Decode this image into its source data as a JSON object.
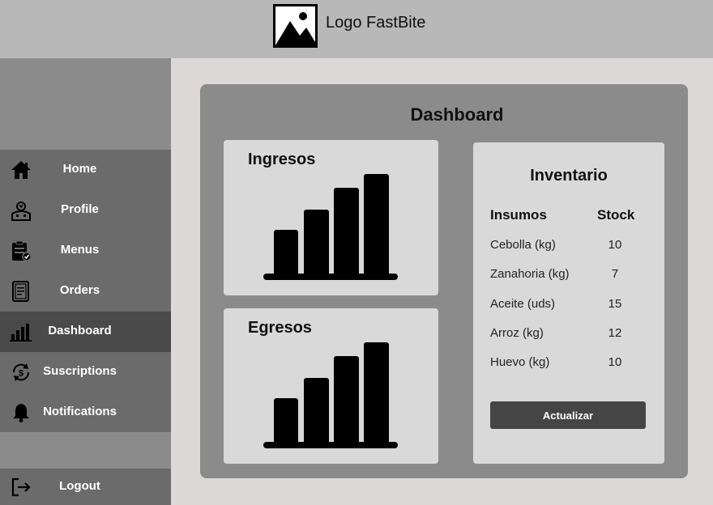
{
  "header": {
    "logo_text": "Logo FastBite"
  },
  "sidebar": {
    "items": [
      {
        "label": "Home",
        "icon": "home-icon"
      },
      {
        "label": "Profile",
        "icon": "profile-icon"
      },
      {
        "label": "Menus",
        "icon": "clipboard-icon"
      },
      {
        "label": "Orders",
        "icon": "orders-icon"
      },
      {
        "label": "Dashboard",
        "icon": "bar-chart-icon",
        "active": true
      },
      {
        "label": "Suscriptions",
        "icon": "subscription-icon"
      },
      {
        "label": "Notifications",
        "icon": "bell-icon"
      }
    ],
    "logout": {
      "label": "Logout",
      "icon": "logout-icon"
    }
  },
  "dashboard": {
    "title": "Dashboard",
    "income": {
      "title": "Ingresos"
    },
    "expenses": {
      "title": "Egresos"
    },
    "inventory": {
      "title": "Inventario",
      "col_item": "Insumos",
      "col_stock": "Stock",
      "rows": [
        {
          "name": "Cebolla (kg)",
          "stock": "10"
        },
        {
          "name": "Zanahoria (kg)",
          "stock": "7"
        },
        {
          "name": "Aceite (uds)",
          "stock": "15"
        },
        {
          "name": "Arroz (kg)",
          "stock": "12"
        },
        {
          "name": "Huevo (kg)",
          "stock": "10"
        }
      ],
      "button_label": "Actualizar"
    }
  }
}
